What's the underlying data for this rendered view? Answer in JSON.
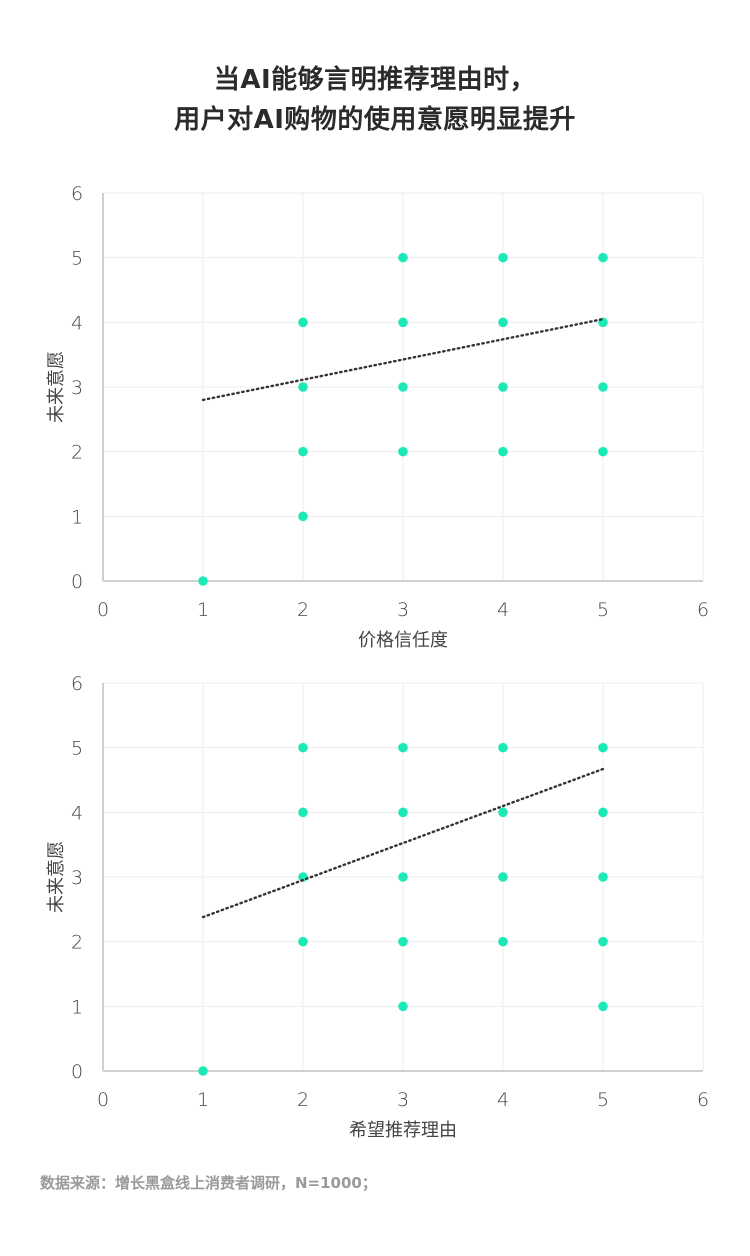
{
  "title": {
    "line1": "当AI能够言明推荐理由时，",
    "line2": "用户对AI购物的使用意愿明显提升"
  },
  "source": "数据来源：增长黑盒线上消费者调研，N=1000；",
  "colors": {
    "point": "#1DE9B6",
    "trendline": "#333333",
    "grid": "#EEEEEE",
    "axis": "#D0D0D0",
    "title": "#2B2B2B",
    "source": "#9A9A9A"
  },
  "chart_data": [
    {
      "type": "scatter",
      "title": "",
      "xlabel": "价格信任度",
      "ylabel": "未来意愿",
      "xlim": [
        0,
        6
      ],
      "ylim": [
        0,
        6
      ],
      "xticks": [
        "0",
        "1",
        "2",
        "3",
        "4",
        "5",
        "6"
      ],
      "yticks": [
        "0",
        "1",
        "2",
        "3",
        "4",
        "5",
        "6"
      ],
      "grid": true,
      "points": [
        [
          1,
          0
        ],
        [
          2,
          1
        ],
        [
          2,
          2
        ],
        [
          2,
          3
        ],
        [
          2,
          4
        ],
        [
          3,
          2
        ],
        [
          3,
          3
        ],
        [
          3,
          4
        ],
        [
          3,
          5
        ],
        [
          4,
          2
        ],
        [
          4,
          3
        ],
        [
          4,
          4
        ],
        [
          4,
          5
        ],
        [
          5,
          2
        ],
        [
          5,
          3
        ],
        [
          5,
          4
        ],
        [
          5,
          5
        ]
      ],
      "trendline": {
        "style": "dotted",
        "x": [
          1,
          5
        ],
        "y": [
          2.8,
          4.05
        ]
      }
    },
    {
      "type": "scatter",
      "title": "",
      "xlabel": "希望推荐理由",
      "ylabel": "未来意愿",
      "xlim": [
        0,
        6
      ],
      "ylim": [
        0,
        6
      ],
      "xticks": [
        "0",
        "1",
        "2",
        "3",
        "4",
        "5",
        "6"
      ],
      "yticks": [
        "0",
        "1",
        "2",
        "3",
        "4",
        "5",
        "6"
      ],
      "grid": true,
      "points": [
        [
          1,
          0
        ],
        [
          2,
          2
        ],
        [
          2,
          3
        ],
        [
          2,
          4
        ],
        [
          2,
          5
        ],
        [
          3,
          1
        ],
        [
          3,
          2
        ],
        [
          3,
          3
        ],
        [
          3,
          4
        ],
        [
          3,
          5
        ],
        [
          4,
          2
        ],
        [
          4,
          3
        ],
        [
          4,
          4
        ],
        [
          4,
          5
        ],
        [
          5,
          1
        ],
        [
          5,
          2
        ],
        [
          5,
          3
        ],
        [
          5,
          4
        ],
        [
          5,
          5
        ]
      ],
      "trendline": {
        "style": "dotted",
        "x": [
          1,
          5
        ],
        "y": [
          2.38,
          4.67
        ]
      }
    }
  ]
}
